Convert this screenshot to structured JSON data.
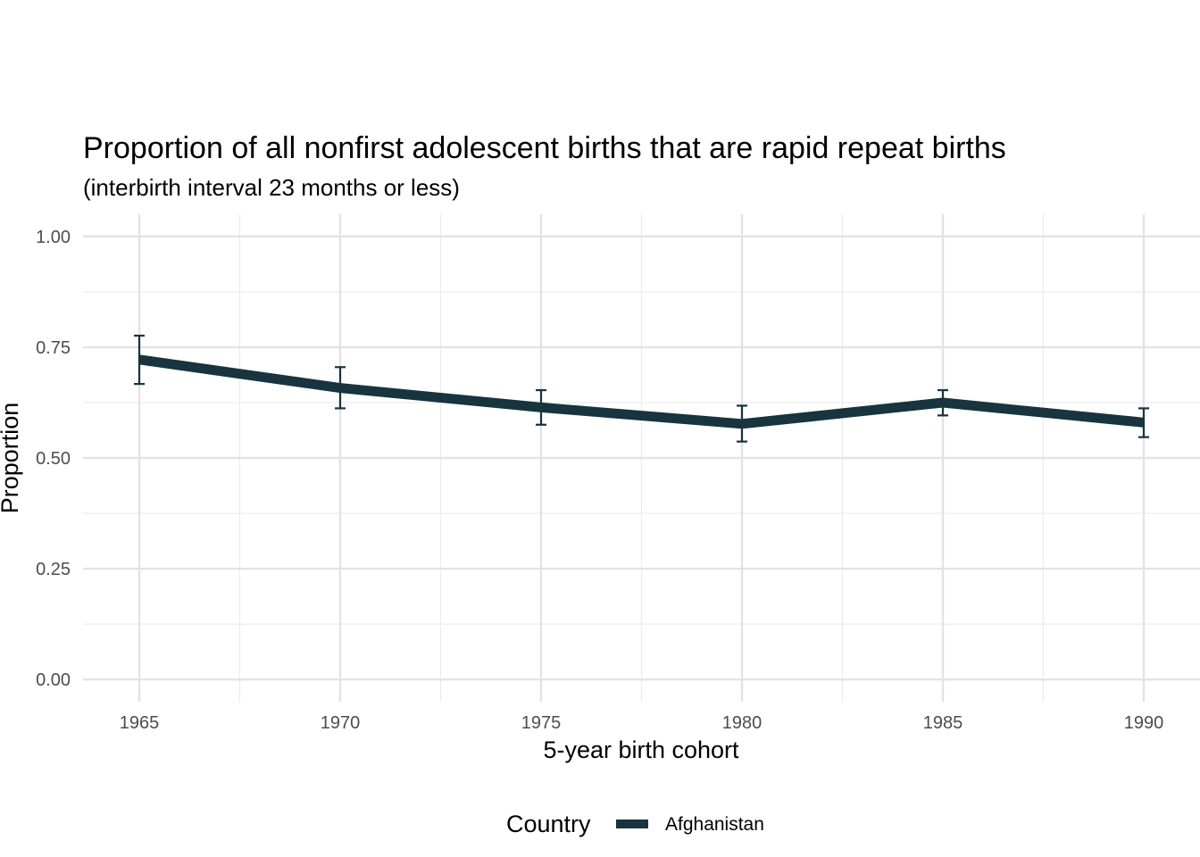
{
  "chart_data": {
    "type": "line",
    "title": "Proportion of all nonfirst adolescent births that are rapid repeat births",
    "subtitle": "(interbirth interval 23 months or less)",
    "xlabel": "5-year birth cohort",
    "ylabel": "Proportion",
    "x": [
      1965,
      1970,
      1975,
      1980,
      1985,
      1990
    ],
    "xlim": [
      1963.6,
      1991.4
    ],
    "ylim": [
      -0.05,
      1.05
    ],
    "x_ticks": [
      "1965",
      "1970",
      "1975",
      "1980",
      "1985",
      "1990"
    ],
    "y_ticks": [
      {
        "value": 0,
        "label": "0.00"
      },
      {
        "value": 0.25,
        "label": "0.25"
      },
      {
        "value": 0.5,
        "label": "0.50"
      },
      {
        "value": 0.75,
        "label": "0.75"
      },
      {
        "value": 1,
        "label": "1.00"
      }
    ],
    "grid": true,
    "legend_position": "bottom",
    "legend_title": "Country",
    "series": [
      {
        "name": "Afghanistan",
        "color": "#17343f",
        "values": [
          0.722,
          0.658,
          0.614,
          0.577,
          0.625,
          0.58
        ],
        "lower": [
          0.667,
          0.612,
          0.575,
          0.537,
          0.596,
          0.547
        ],
        "upper": [
          0.776,
          0.705,
          0.653,
          0.618,
          0.653,
          0.612
        ]
      }
    ]
  }
}
